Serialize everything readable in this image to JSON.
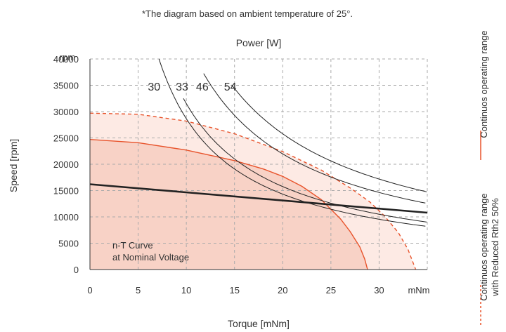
{
  "chart_data": {
    "type": "line",
    "note": "*The diagram based on ambient temperature of 25°.",
    "top_axis_label": "Power [W]",
    "xlabel": "Torque [mNm]",
    "ylabel": "Speed [rpm]",
    "x_unit_tick": "mNm",
    "y_unit_tick": "rpm",
    "xlim": [
      0,
      35
    ],
    "ylim": [
      0,
      40000
    ],
    "x_ticks": [
      "0",
      "5",
      "10",
      "15",
      "20",
      "25",
      "30"
    ],
    "y_ticks": [
      "0",
      "5000",
      "10000",
      "15000",
      "20000",
      "25000",
      "30000",
      "35000",
      "40000"
    ],
    "grid": true,
    "colors": {
      "continuous": "#e8532b",
      "continuous_fill": "#f8d2c6",
      "reduced_fill": "#fdeae4",
      "nt_curve": "#222222",
      "power": "#222222",
      "grid": "#aaaaaa"
    },
    "annotation": {
      "line1": "n-T Curve",
      "line2": "at Nominal Voltage"
    },
    "legend": {
      "continuous": "Continuos operating range",
      "reduced_line1": "Continuos operating range",
      "reduced_line2": "with Reduced Rth2 50%"
    },
    "series": [
      {
        "key": "nt",
        "x": [
          0,
          35
        ],
        "y": [
          16200,
          10800
        ]
      },
      {
        "key": "continuous",
        "x": [
          0,
          5,
          10,
          15,
          18,
          20,
          22,
          24,
          26,
          27,
          28,
          28.5,
          28.8
        ],
        "y": [
          24700,
          24100,
          22700,
          20700,
          19100,
          17700,
          15800,
          13300,
          9600,
          7200,
          4300,
          2000,
          0
        ]
      },
      {
        "key": "reduced",
        "x": [
          0,
          5,
          10,
          15,
          20,
          24,
          27,
          29,
          30.5,
          32,
          33,
          33.8
        ],
        "y": [
          29700,
          29500,
          28200,
          25800,
          22400,
          18900,
          15500,
          12900,
          10300,
          7000,
          3800,
          0
        ]
      }
    ],
    "power_curves": [
      {
        "label": "30",
        "value": 30,
        "x_start": 6.8
      },
      {
        "label": "33",
        "value": 33,
        "x_start": 9.7
      },
      {
        "label": "46",
        "value": 46,
        "x_start": 11.8
      },
      {
        "label": "54",
        "value": 54,
        "x_start": 14.7
      }
    ]
  }
}
